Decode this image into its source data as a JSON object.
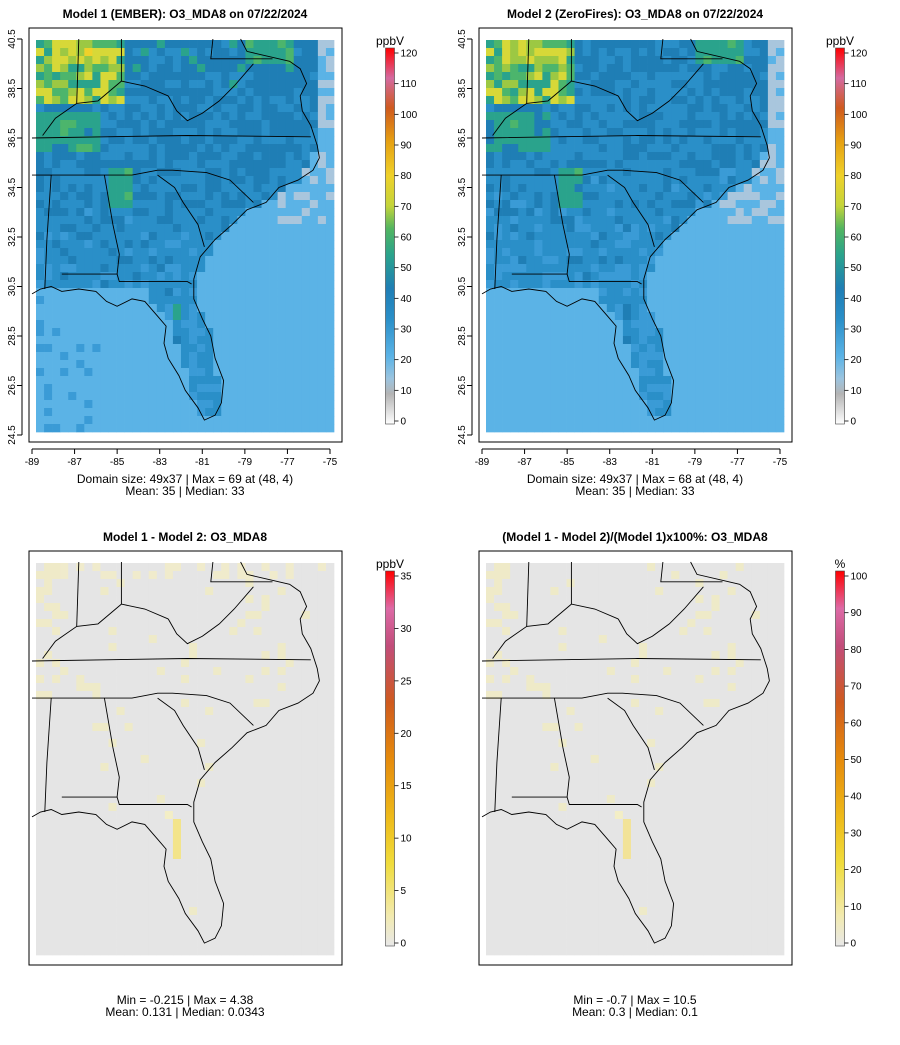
{
  "chart_data": [
    {
      "type": "heatmap",
      "title": "Model 1 (EMBER): O3_MDA8 on 07/22/2024",
      "stats_line1": "Domain size: 49x37 | Max = 69 at (48, 4)",
      "stats_line2": "Mean: 35 |  Median: 33",
      "x_ticks": [
        "-89",
        "-87",
        "-85",
        "-83",
        "-81",
        "-79",
        "-77",
        "-75"
      ],
      "y_ticks": [
        "24.5",
        "26.5",
        "28.5",
        "30.5",
        "32.5",
        "34.5",
        "36.5",
        "38.5",
        "40.5"
      ],
      "xlim": [
        -89,
        -75
      ],
      "ylim": [
        24.5,
        40.5
      ],
      "colorbar": {
        "unit": "ppbV",
        "ticks": [
          "0",
          "10",
          "20",
          "30",
          "40",
          "50",
          "60",
          "70",
          "80",
          "90",
          "100",
          "110",
          "120"
        ],
        "range": [
          0,
          120
        ]
      },
      "summary": {
        "max": 69,
        "mean": 35,
        "median": 33
      },
      "palette": "o3"
    },
    {
      "type": "heatmap",
      "title": "Model 2 (ZeroFires): O3_MDA8 on 07/22/2024",
      "stats_line1": "Domain size: 49x37 | Max = 68 at (48, 4)",
      "stats_line2": "Mean: 35 |  Median: 33",
      "x_ticks": [
        "-89",
        "-87",
        "-85",
        "-83",
        "-81",
        "-79",
        "-77",
        "-75"
      ],
      "y_ticks": [
        "24.5",
        "26.5",
        "28.5",
        "30.5",
        "32.5",
        "34.5",
        "36.5",
        "38.5",
        "40.5"
      ],
      "xlim": [
        -89,
        -75
      ],
      "ylim": [
        24.5,
        40.5
      ],
      "colorbar": {
        "unit": "ppbV",
        "ticks": [
          "0",
          "10",
          "20",
          "30",
          "40",
          "50",
          "60",
          "70",
          "80",
          "90",
          "100",
          "110",
          "120"
        ],
        "range": [
          0,
          120
        ]
      },
      "summary": {
        "max": 68,
        "mean": 35,
        "median": 33
      },
      "palette": "o3"
    },
    {
      "type": "heatmap",
      "title": "Model 1 - Model 2: O3_MDA8",
      "stats_line1": "Min = -0.215 | Max = 4.38",
      "stats_line2": "Mean: 0.131 |  Median: 0.0343",
      "colorbar": {
        "unit": "ppbV",
        "ticks": [
          "0",
          "5",
          "10",
          "15",
          "20",
          "25",
          "30",
          "35"
        ],
        "range": [
          0,
          35
        ]
      },
      "summary": {
        "min": -0.215,
        "max": 4.38,
        "mean": 0.131,
        "median": 0.0343
      },
      "palette": "diff"
    },
    {
      "type": "heatmap",
      "title": "(Model 1 - Model 2)/(Model 1)x100%: O3_MDA8",
      "stats_line1": "Min = -0.7 | Max = 10.5",
      "stats_line2": "Mean: 0.3 |  Median: 0.1",
      "colorbar": {
        "unit": "%",
        "ticks": [
          "0",
          "10",
          "20",
          "30",
          "40",
          "50",
          "60",
          "70",
          "80",
          "90",
          "100"
        ],
        "range": [
          0,
          100
        ]
      },
      "summary": {
        "min": -0.7,
        "max": 10.5,
        "mean": 0.3,
        "median": 0.1
      },
      "palette": "diff"
    }
  ],
  "colors": {
    "ocean_low": "#5bb3e6",
    "land_mid": "#2a8fc8",
    "high_green": "#2bb07a",
    "peak_yellow": "#e8d83a",
    "diff_background": "#e5e5e5",
    "diff_positive": "#f0e6a0"
  }
}
